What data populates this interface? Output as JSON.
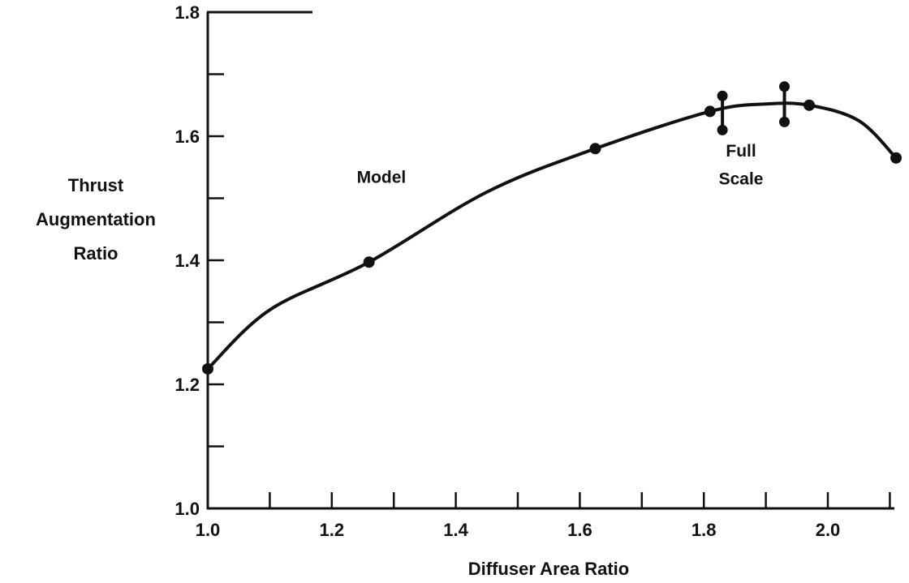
{
  "chart_data": {
    "type": "line",
    "title": "",
    "xlabel": "Diffuser Area Ratio",
    "ylabel": [
      "Thrust",
      "Augmentation",
      "Ratio"
    ],
    "xlim": [
      1.0,
      2.12
    ],
    "ylim": [
      1.0,
      1.8
    ],
    "x_ticks": [
      1.0,
      1.2,
      1.4,
      1.6,
      1.8,
      2.0
    ],
    "x_tick_labels": [
      "1.0",
      "1.2",
      "1.4",
      "1.6",
      "1.8",
      "2.0"
    ],
    "x_minor_ticks": [
      1.1,
      1.3,
      1.5,
      1.7,
      1.9,
      2.1
    ],
    "y_ticks": [
      1.0,
      1.2,
      1.4,
      1.6,
      1.8
    ],
    "y_tick_labels": [
      "1.0",
      "1.2",
      "1.4",
      "1.6",
      "1.8"
    ],
    "y_minor_ticks": [
      1.1,
      1.3,
      1.5,
      1.7
    ],
    "grid": false,
    "series": [
      {
        "curve": [
          [
            1.0,
            1.225
          ],
          [
            1.1,
            1.32
          ],
          [
            1.26,
            1.397
          ],
          [
            1.45,
            1.51
          ],
          [
            1.625,
            1.58
          ],
          [
            1.81,
            1.64
          ],
          [
            1.9,
            1.652
          ],
          [
            1.97,
            1.65
          ],
          [
            2.05,
            1.625
          ],
          [
            2.11,
            1.565
          ]
        ],
        "points": [
          [
            1.0,
            1.225
          ],
          [
            1.26,
            1.397
          ],
          [
            1.625,
            1.58
          ],
          [
            1.81,
            1.64
          ],
          [
            1.97,
            1.65
          ],
          [
            2.11,
            1.565
          ]
        ]
      }
    ],
    "error_bars": [
      {
        "x": 1.83,
        "low": 1.61,
        "high": 1.665
      },
      {
        "x": 1.93,
        "low": 1.623,
        "high": 1.68
      }
    ],
    "annotations": [
      {
        "text": "Model",
        "x": 1.28,
        "y": 1.525
      },
      {
        "text": "Full",
        "x": 1.86,
        "y": 1.567
      },
      {
        "text": "Scale",
        "x": 1.86,
        "y": 1.522
      }
    ]
  }
}
